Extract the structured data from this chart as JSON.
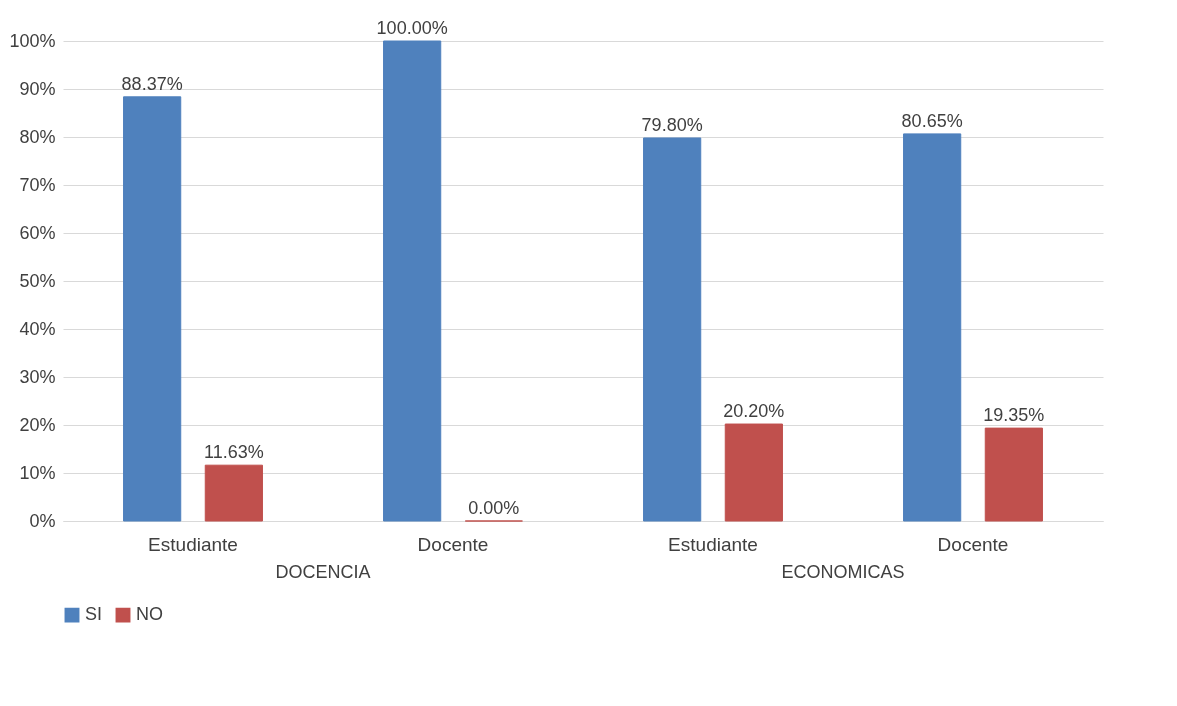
{
  "chart_data": {
    "type": "bar",
    "categories": [
      "Estudiante",
      "Docente",
      "Estudiante",
      "Docente"
    ],
    "series": [
      {
        "name": "SI",
        "color": "#4f81bd",
        "values": [
          88.37,
          100,
          79.8,
          80.65
        ],
        "value_labels": [
          "88.37%",
          "100.00%",
          "79.80%",
          "80.65%"
        ]
      },
      {
        "name": "NO",
        "color": "#c0504d",
        "values": [
          11.63,
          0,
          20.2,
          19.35
        ],
        "value_labels": [
          "11.63%",
          "0.00%",
          "20.20%",
          "19.35%"
        ]
      }
    ],
    "ylim": [
      0,
      100
    ],
    "yticks": [
      {
        "value": 0,
        "label": "0%"
      },
      {
        "value": 10,
        "label": "10%"
      },
      {
        "value": 20,
        "label": "20%"
      },
      {
        "value": 30,
        "label": "30%"
      },
      {
        "value": 40,
        "label": "40%"
      },
      {
        "value": 50,
        "label": "50%"
      },
      {
        "value": 60,
        "label": "60%"
      },
      {
        "value": 70,
        "label": "70%"
      },
      {
        "value": 80,
        "label": "80%"
      },
      {
        "value": 90,
        "label": "90%"
      },
      {
        "value": 100,
        "label": "100%"
      }
    ],
    "annotations": [
      "DOCENCIA",
      "ECONOMICAS"
    ],
    "grid": "y",
    "legend": "bottom"
  }
}
